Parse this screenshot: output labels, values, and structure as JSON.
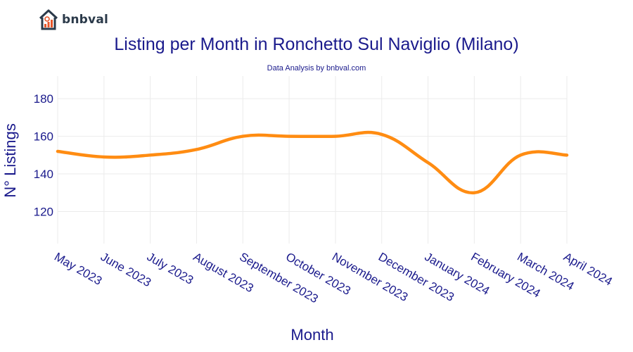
{
  "brand": {
    "name": "bnbval",
    "accent": "#e8562a",
    "dark": "#2b3a4a"
  },
  "chart_data": {
    "type": "line",
    "title": "Listing per Month in Ronchetto Sul Naviglio (Milano)",
    "subtitle": "Data Analysis by bnbval.com",
    "xlabel": "Month",
    "ylabel": "N° Listings",
    "categories": [
      "May 2023",
      "June 2023",
      "July 2023",
      "August 2023",
      "September 2023",
      "October 2023",
      "November 2023",
      "December 2023",
      "January 2024",
      "February 2024",
      "March 2024",
      "April 2024"
    ],
    "series": [
      {
        "name": "Listings",
        "values": [
          152,
          149,
          150,
          153,
          160,
          160,
          160,
          161,
          146,
          130,
          150,
          150
        ],
        "color": "#ff8c12"
      }
    ],
    "yticks": [
      120,
      140,
      160,
      180
    ],
    "ylim": [
      103,
      192
    ],
    "grid": true,
    "colors": {
      "title": "#1a1a8c",
      "grid": "#ebebeb",
      "line": "#ff8c12"
    }
  }
}
